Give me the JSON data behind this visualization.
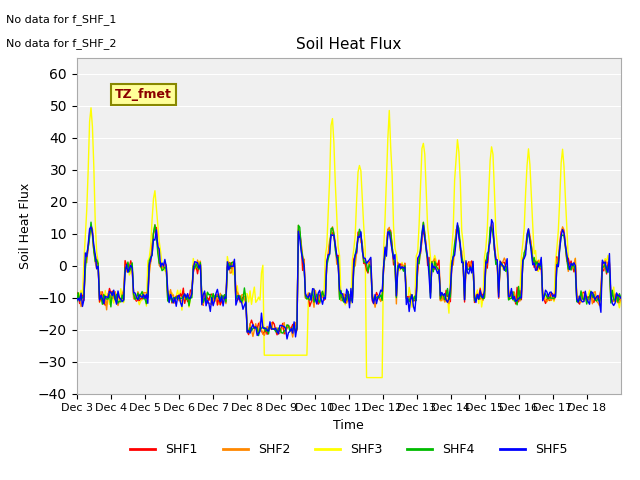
{
  "title": "Soil Heat Flux",
  "ylabel": "Soil Heat Flux",
  "xlabel": "Time",
  "note1": "No data for f_SHF_1",
  "note2": "No data for f_SHF_2",
  "tz_label": "TZ_fmet",
  "ylim": [
    -40,
    65
  ],
  "yticks": [
    -40,
    -30,
    -20,
    -10,
    0,
    10,
    20,
    30,
    40,
    50,
    60
  ],
  "colors": {
    "SHF1": "#ff0000",
    "SHF2": "#ff8800",
    "SHF3": "#ffff00",
    "SHF4": "#00bb00",
    "SHF5": "#0000ff"
  },
  "legend_labels": [
    "SHF1",
    "SHF2",
    "SHF3",
    "SHF4",
    "SHF5"
  ],
  "xticklabels": [
    "Dec 3",
    "Dec 4",
    "Dec 5",
    "Dec 6",
    "Dec 7",
    "Dec 8",
    "Dec 9",
    "Dec 10",
    "Dec 11",
    "Dec 12",
    "Dec 13",
    "Dec 14",
    "Dec 15",
    "Dec 16",
    "Dec 17",
    "Dec 18"
  ],
  "bg_color": "#e8e8e8",
  "plot_bg_color": "#f0f0f0"
}
